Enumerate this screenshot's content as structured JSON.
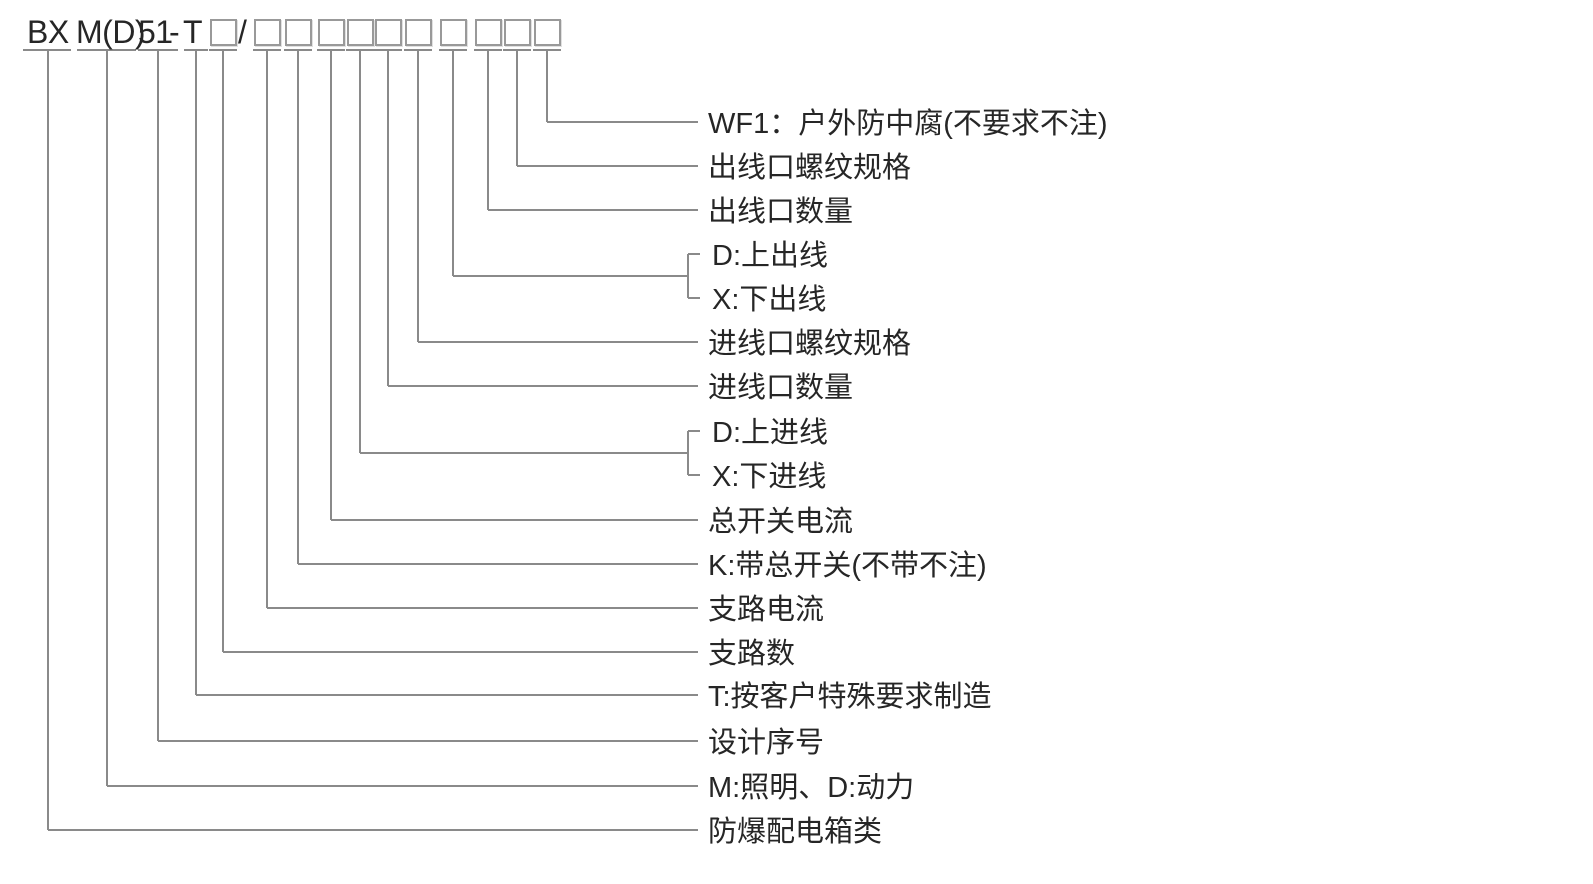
{
  "code_header": {
    "parts": [
      "BX",
      "M(D)",
      "51",
      "-",
      "T"
    ],
    "slash": "/",
    "box_count": 11
  },
  "labels": [
    "WF1：户外防中腐(不要求不注)",
    "出线口螺纹规格",
    "出线口数量",
    "D:上出线",
    "X:下出线",
    "进线口螺纹规格",
    "进线口数量",
    "D:上进线",
    "X:下进线",
    "总开关电流",
    "K:带总开关(不带不注)",
    "支路电流",
    "支路数",
    "T:按客户特殊要求制造",
    "设计序号",
    "M:照明、D:动力",
    "防爆配电箱类"
  ],
  "colors": {
    "text": "#262626",
    "line": "#8a8a8a",
    "box_border": "#999999",
    "background": "#ffffff"
  }
}
